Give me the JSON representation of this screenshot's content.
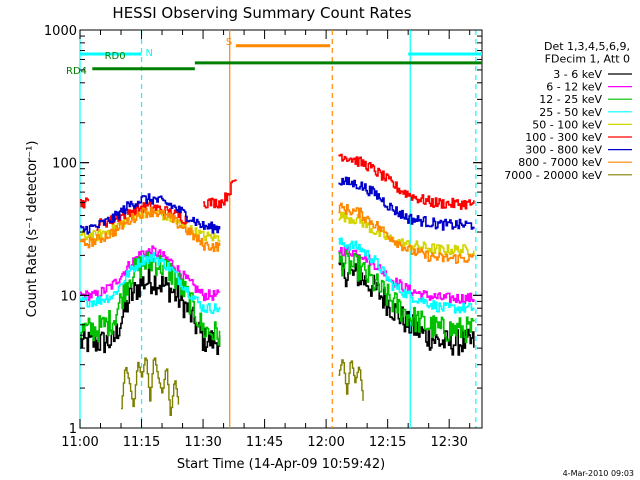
{
  "chart_data": {
    "type": "line",
    "title": "HESSI Observing Summary Count Rates",
    "xlabel": "Start Time (14-Apr-09 10:59:42)",
    "ylabel": "Count Rate (s⁻¹ detector⁻¹)",
    "x_ticks": [
      "11:00",
      "11:15",
      "11:30",
      "11:45",
      "12:00",
      "12:15",
      "12:30"
    ],
    "x_range_minutes_after_11_00": [
      0,
      98
    ],
    "y_ticks": [
      "1",
      "10",
      "100",
      "1000"
    ],
    "ylim": [
      1,
      1000
    ],
    "y_scale": "log",
    "grid": false,
    "legend_position": "top-right",
    "legend_header": [
      "Det 1,3,4,5,6,9,",
      "FDecim 1, Att 0"
    ],
    "series": [
      {
        "name": "3 - 6 keV",
        "color": "#000000",
        "values": [
          [
            0,
            4.4
          ],
          [
            4,
            4.4
          ],
          [
            8,
            4.5
          ],
          [
            12,
            9.5
          ],
          [
            15,
            12.5
          ],
          [
            18,
            13
          ],
          [
            22,
            11
          ],
          [
            26,
            8
          ],
          [
            30,
            4.6
          ],
          [
            34,
            4.5
          ],
          [
            40,
            null
          ],
          [
            62,
            null
          ],
          [
            63,
            15
          ],
          [
            68,
            14
          ],
          [
            72,
            11
          ],
          [
            76,
            8
          ],
          [
            80,
            6
          ],
          [
            84,
            5
          ],
          [
            88,
            4.4
          ],
          [
            92,
            4.4
          ],
          [
            96,
            4.4
          ]
        ]
      },
      {
        "name": "6 - 12 keV",
        "color": "#ff00ff",
        "values": [
          [
            0,
            10
          ],
          [
            4,
            10
          ],
          [
            8,
            12
          ],
          [
            12,
            17
          ],
          [
            15,
            21
          ],
          [
            18,
            21.5
          ],
          [
            22,
            18
          ],
          [
            26,
            13
          ],
          [
            30,
            10
          ],
          [
            34,
            10
          ],
          [
            40,
            null
          ],
          [
            62,
            null
          ],
          [
            63,
            22
          ],
          [
            68,
            21
          ],
          [
            72,
            17
          ],
          [
            76,
            13
          ],
          [
            80,
            11
          ],
          [
            84,
            10
          ],
          [
            88,
            9.5
          ],
          [
            92,
            9.5
          ],
          [
            96,
            9.5
          ]
        ]
      },
      {
        "name": "12 - 25 keV",
        "color": "#00c000",
        "values": [
          [
            0,
            5.5
          ],
          [
            4,
            5.5
          ],
          [
            8,
            6.5
          ],
          [
            12,
            14
          ],
          [
            15,
            17
          ],
          [
            18,
            18
          ],
          [
            22,
            15
          ],
          [
            26,
            10
          ],
          [
            30,
            5.5
          ],
          [
            34,
            5
          ],
          [
            40,
            null
          ],
          [
            62,
            null
          ],
          [
            63,
            18
          ],
          [
            68,
            16
          ],
          [
            72,
            12
          ],
          [
            76,
            9
          ],
          [
            80,
            7
          ],
          [
            84,
            6
          ],
          [
            88,
            5.5
          ],
          [
            92,
            5.5
          ],
          [
            96,
            5.5
          ]
        ]
      },
      {
        "name": "25 - 50 keV",
        "color": "#00ffff",
        "values": [
          [
            0,
            9
          ],
          [
            4,
            9
          ],
          [
            8,
            10
          ],
          [
            12,
            15
          ],
          [
            15,
            18.5
          ],
          [
            18,
            19.5
          ],
          [
            22,
            16
          ],
          [
            26,
            11
          ],
          [
            30,
            8
          ],
          [
            34,
            8
          ],
          [
            40,
            null
          ],
          [
            62,
            null
          ],
          [
            63,
            25
          ],
          [
            68,
            23
          ],
          [
            72,
            18
          ],
          [
            76,
            12
          ],
          [
            80,
            10
          ],
          [
            84,
            9
          ],
          [
            88,
            8
          ],
          [
            92,
            8
          ],
          [
            96,
            8
          ]
        ]
      },
      {
        "name": "50 - 100 keV",
        "color": "#d4d400",
        "values": [
          [
            0,
            28
          ],
          [
            4,
            28
          ],
          [
            8,
            32
          ],
          [
            12,
            38
          ],
          [
            15,
            42
          ],
          [
            18,
            43
          ],
          [
            22,
            38
          ],
          [
            26,
            32
          ],
          [
            30,
            28
          ],
          [
            34,
            27
          ],
          [
            40,
            null
          ],
          [
            62,
            null
          ],
          [
            63,
            40
          ],
          [
            68,
            37
          ],
          [
            72,
            30
          ],
          [
            76,
            26
          ],
          [
            80,
            24
          ],
          [
            84,
            23
          ],
          [
            88,
            22
          ],
          [
            92,
            22
          ],
          [
            96,
            22
          ]
        ]
      },
      {
        "name": "100 - 300 keV",
        "color": "#ff0000",
        "values": [
          [
            0,
            50
          ],
          [
            2,
            50
          ],
          [
            3,
            null
          ],
          [
            4,
            34
          ],
          [
            8,
            37
          ],
          [
            12,
            43
          ],
          [
            15,
            46
          ],
          [
            18,
            46
          ],
          [
            22,
            42
          ],
          [
            26,
            37
          ],
          [
            29,
            null
          ],
          [
            30,
            50
          ],
          [
            34,
            50
          ],
          [
            35,
            52
          ],
          [
            38,
            76
          ],
          [
            40,
            null
          ],
          [
            62,
            null
          ],
          [
            63,
            115
          ],
          [
            66,
            108
          ],
          [
            70,
            95
          ],
          [
            74,
            78
          ],
          [
            78,
            62
          ],
          [
            82,
            54
          ],
          [
            86,
            50
          ],
          [
            90,
            49
          ],
          [
            96,
            49
          ]
        ]
      },
      {
        "name": "300 - 800 keV",
        "color": "#0000cc",
        "values": [
          [
            0,
            31
          ],
          [
            4,
            33
          ],
          [
            8,
            38
          ],
          [
            12,
            48
          ],
          [
            15,
            53
          ],
          [
            18,
            53
          ],
          [
            22,
            48
          ],
          [
            26,
            40
          ],
          [
            30,
            33
          ],
          [
            34,
            32
          ],
          [
            40,
            null
          ],
          [
            62,
            null
          ],
          [
            63,
            73
          ],
          [
            68,
            68
          ],
          [
            72,
            58
          ],
          [
            76,
            45
          ],
          [
            80,
            38
          ],
          [
            84,
            36
          ],
          [
            88,
            34
          ],
          [
            92,
            34
          ],
          [
            96,
            34
          ]
        ]
      },
      {
        "name": "800 - 7000 keV",
        "color": "#ff8800",
        "values": [
          [
            0,
            24
          ],
          [
            4,
            26
          ],
          [
            8,
            30
          ],
          [
            12,
            37
          ],
          [
            15,
            42
          ],
          [
            18,
            43
          ],
          [
            22,
            38
          ],
          [
            26,
            31
          ],
          [
            30,
            24
          ],
          [
            34,
            23
          ],
          [
            40,
            null
          ],
          [
            62,
            null
          ],
          [
            63,
            46
          ],
          [
            68,
            42
          ],
          [
            72,
            34
          ],
          [
            76,
            27
          ],
          [
            80,
            22
          ],
          [
            84,
            20
          ],
          [
            88,
            19
          ],
          [
            92,
            19
          ],
          [
            96,
            19
          ]
        ]
      },
      {
        "name": "7000 - 20000 keV",
        "color": "#808000",
        "values": [
          [
            8,
            null
          ],
          [
            10,
            1.4
          ],
          [
            11,
            3
          ],
          [
            12,
            2.2
          ],
          [
            13,
            1.4
          ],
          [
            14,
            3.2
          ],
          [
            15,
            2.4
          ],
          [
            16,
            3.6
          ],
          [
            17,
            1.6
          ],
          [
            18,
            3.6
          ],
          [
            19,
            2.4
          ],
          [
            20,
            1.8
          ],
          [
            21,
            3
          ],
          [
            22,
            1.2
          ],
          [
            23,
            2.4
          ],
          [
            24,
            1.5
          ],
          [
            24.5,
            null
          ],
          [
            62,
            null
          ],
          [
            63,
            2.5
          ],
          [
            64,
            3.4
          ],
          [
            65,
            1.8
          ],
          [
            66,
            3.4
          ],
          [
            67,
            2.2
          ],
          [
            68,
            3
          ],
          [
            69,
            1.6
          ],
          [
            70,
            null
          ]
        ]
      }
    ],
    "state_bars": [
      {
        "label": "N",
        "color": "#00ffff",
        "level": 660,
        "segments": [
          [
            0,
            15
          ],
          [
            80,
            98
          ]
        ]
      },
      {
        "label": "S",
        "color": "#ff8800",
        "level": 760,
        "segments": [
          [
            38,
            61
          ]
        ]
      },
      {
        "label": "RD0",
        "color": "#008000",
        "level": 565,
        "segments": [
          [
            28,
            98
          ]
        ]
      },
      {
        "label": "RD4",
        "color": "#008000",
        "level": 510,
        "segments": [
          [
            3,
            28
          ]
        ]
      }
    ],
    "vertical_markers": [
      {
        "x": 0,
        "color": "#00ffff",
        "style": "solid"
      },
      {
        "x": 15,
        "color": "#00ffff",
        "style": "dashed"
      },
      {
        "x": 36.5,
        "color": "#ff8800",
        "style": "solid"
      },
      {
        "x": 61.5,
        "color": "#ff8800",
        "style": "dashed"
      },
      {
        "x": 80.5,
        "color": "#00ffff",
        "style": "solid"
      },
      {
        "x": 96.5,
        "color": "#00ffff",
        "style": "dashed"
      }
    ]
  },
  "footer": {
    "date_stamp": "4-Mar-2010 09:03"
  }
}
